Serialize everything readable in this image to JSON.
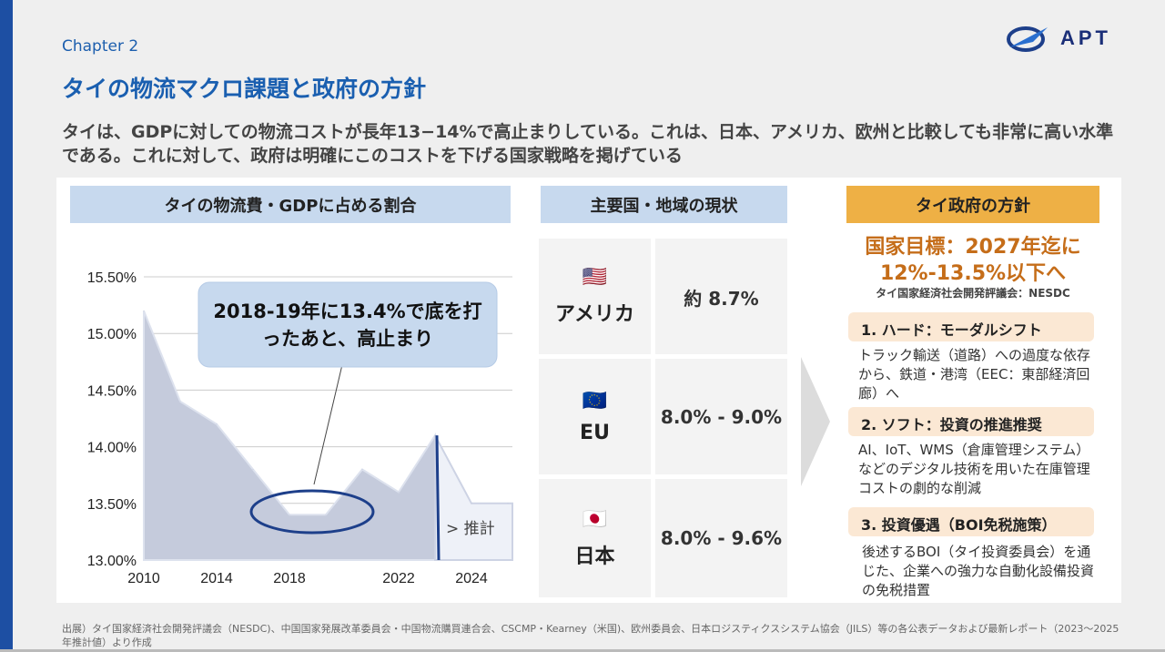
{
  "header": {
    "chapter": "Chapter 2",
    "title": "タイの物流マクロ課題と政府の方針",
    "logo_text": "APT"
  },
  "lead": "タイは、GDPに対しての物流コストが長年13−14%で高止まりしている。これは、日本、アメリカ、欧州と比較しても非常に高い水準である。これに対して、政府は明確にこのコストを下げる国家戦略を掲げている",
  "colors": {
    "brand": "#1a5fb0",
    "accent_orange": "#eeb045",
    "goal_text": "#c56d19",
    "area": "#c5cbdc",
    "marker": "#1d3f8a"
  },
  "chart_section": {
    "header": "タイの物流費・GDPに占める割合"
  },
  "chart_data": {
    "type": "area",
    "categories": [
      "2010",
      "",
      "2014",
      "",
      "2018",
      "",
      "",
      "2022",
      "",
      "2024",
      ""
    ],
    "values": [
      15.2,
      14.4,
      14.2,
      13.8,
      13.4,
      13.4,
      13.8,
      13.6,
      14.1,
      13.5,
      13.5
    ],
    "forecast_start_index": 8,
    "forecast_label": "> 推計",
    "yticks": [
      "15.50%",
      "15.00%",
      "14.50%",
      "14.00%",
      "13.50%",
      "13.00%"
    ],
    "ylim": [
      13.0,
      15.5
    ],
    "grid": true,
    "annotation": "2018-19年に13.4%で底を打ったあと、高止まり"
  },
  "comparison": {
    "header": "主要国・地域の現状",
    "rows": [
      {
        "flag": "🇺🇸",
        "name": "アメリカ",
        "value": "約 8.7%"
      },
      {
        "flag": "🇪🇺",
        "name": "EU",
        "value": "8.0% - 9.0%"
      },
      {
        "flag": "🇯🇵",
        "name": "日本",
        "value": "8.0% - 9.6%"
      }
    ]
  },
  "policy": {
    "header": "タイ政府の方針",
    "goal": "国家目標：2027年迄に12%-13.5%以下へ",
    "goal_source": "タイ国家経済社会開発評議会：NESDC",
    "items": [
      {
        "title": "1. ハード：モーダルシフト",
        "desc": "トラック輸送（道路）への過度な依存から、鉄道・港湾（EEC：東部経済回廊）へ"
      },
      {
        "title": "2. ソフト：投資の推進推奨",
        "desc": "AI、IoT、WMS（倉庫管理システム）などのデジタル技術を用いた在庫管理コストの劇的な削減"
      },
      {
        "title": "3. 投資優遇（BOI免税施策）",
        "desc": "後述するBOI（タイ投資委員会）を通じた、企業への強力な自動化設備投資の免税措置"
      }
    ]
  },
  "footer": "出展）タイ国家経済社会開発評議会（NESDC)、中国国家発展改革委員会・中国物流購買連合会、CSCMP・Kearney（米国)、欧州委員会、日本ロジスティクスシステム協会（JILS）等の各公表データおよび最新レポート（2023〜2025年推計値）より作成"
}
